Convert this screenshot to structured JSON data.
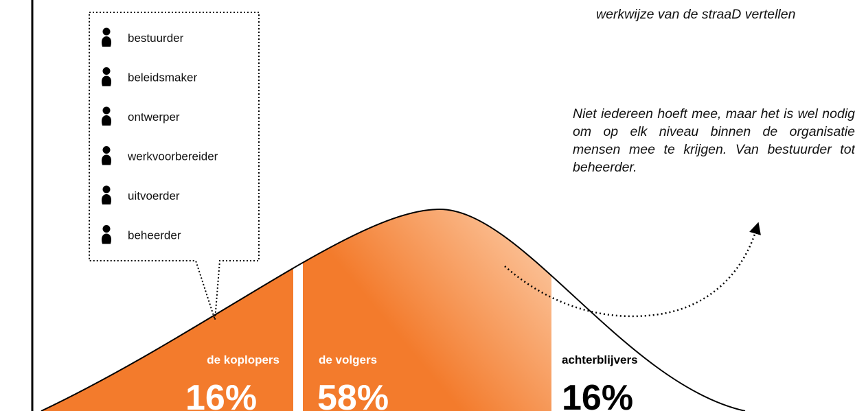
{
  "notes": {
    "top_partial": "werkwijze van de straaD vertellen",
    "main": "Niet iedereen hoeft mee, maar het is wel nodig om op elk niveau binnen de organisatie mensen mee te krijgen. Van bestuurder tot beheerder."
  },
  "roles": {
    "items": [
      {
        "label": "bestuurder",
        "icon": "person-icon"
      },
      {
        "label": "beleidsmaker",
        "icon": "person-icon"
      },
      {
        "label": "ontwerper",
        "icon": "person-icon"
      },
      {
        "label": "werkvoorbereider",
        "icon": "person-icon"
      },
      {
        "label": "uitvoerder",
        "icon": "person-icon"
      },
      {
        "label": "beheerder",
        "icon": "person-icon"
      }
    ]
  },
  "segments": [
    {
      "label": "de koplopers",
      "percent": "16%",
      "fill": "#f37b2c"
    },
    {
      "label": "de volgers",
      "percent": "58%",
      "fill": "#f37b2c"
    },
    {
      "label": "achterblijvers",
      "percent": "16%",
      "fill": "#ffffff"
    }
  ],
  "colors": {
    "accent": "#f37b2c",
    "accent_light": "#fdd0ad",
    "line": "#000000"
  }
}
